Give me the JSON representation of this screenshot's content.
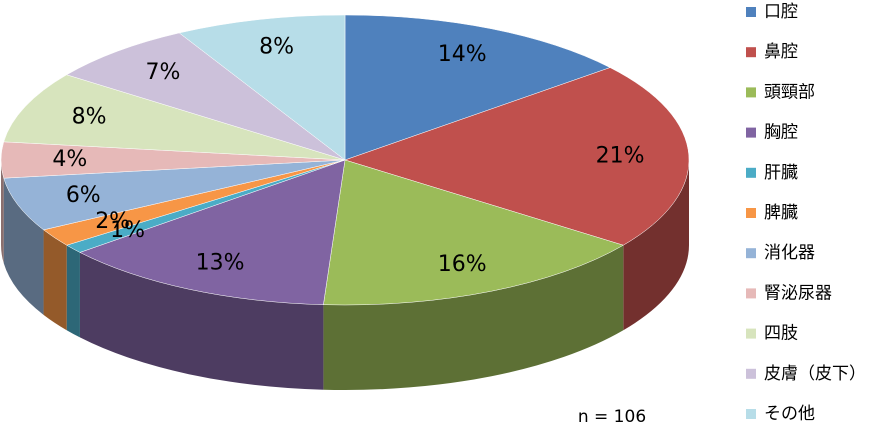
{
  "chart_data": {
    "type": "pie",
    "categories": [
      "口腔",
      "鼻腔",
      "頭頸部",
      "胸腔",
      "肝臓",
      "脾臓",
      "消化器",
      "腎泌尿器",
      "四肢",
      "皮膚（皮下）",
      "その他"
    ],
    "values": [
      14,
      21,
      16,
      13,
      1,
      2,
      6,
      4,
      8,
      7,
      8
    ],
    "value_labels": [
      "14%",
      "21%",
      "16%",
      "13%",
      "1%",
      "2%",
      "6%",
      "4%",
      "8%",
      "7%",
      "8%"
    ],
    "colors": [
      "#4f81bd",
      "#c0504d",
      "#9bbb59",
      "#8064a2",
      "#4bacc6",
      "#f79646",
      "#95b3d7",
      "#e6b9b8",
      "#d7e4bd",
      "#ccc1da",
      "#b7dde8"
    ],
    "annotation": "n = 106",
    "legend": "right"
  }
}
